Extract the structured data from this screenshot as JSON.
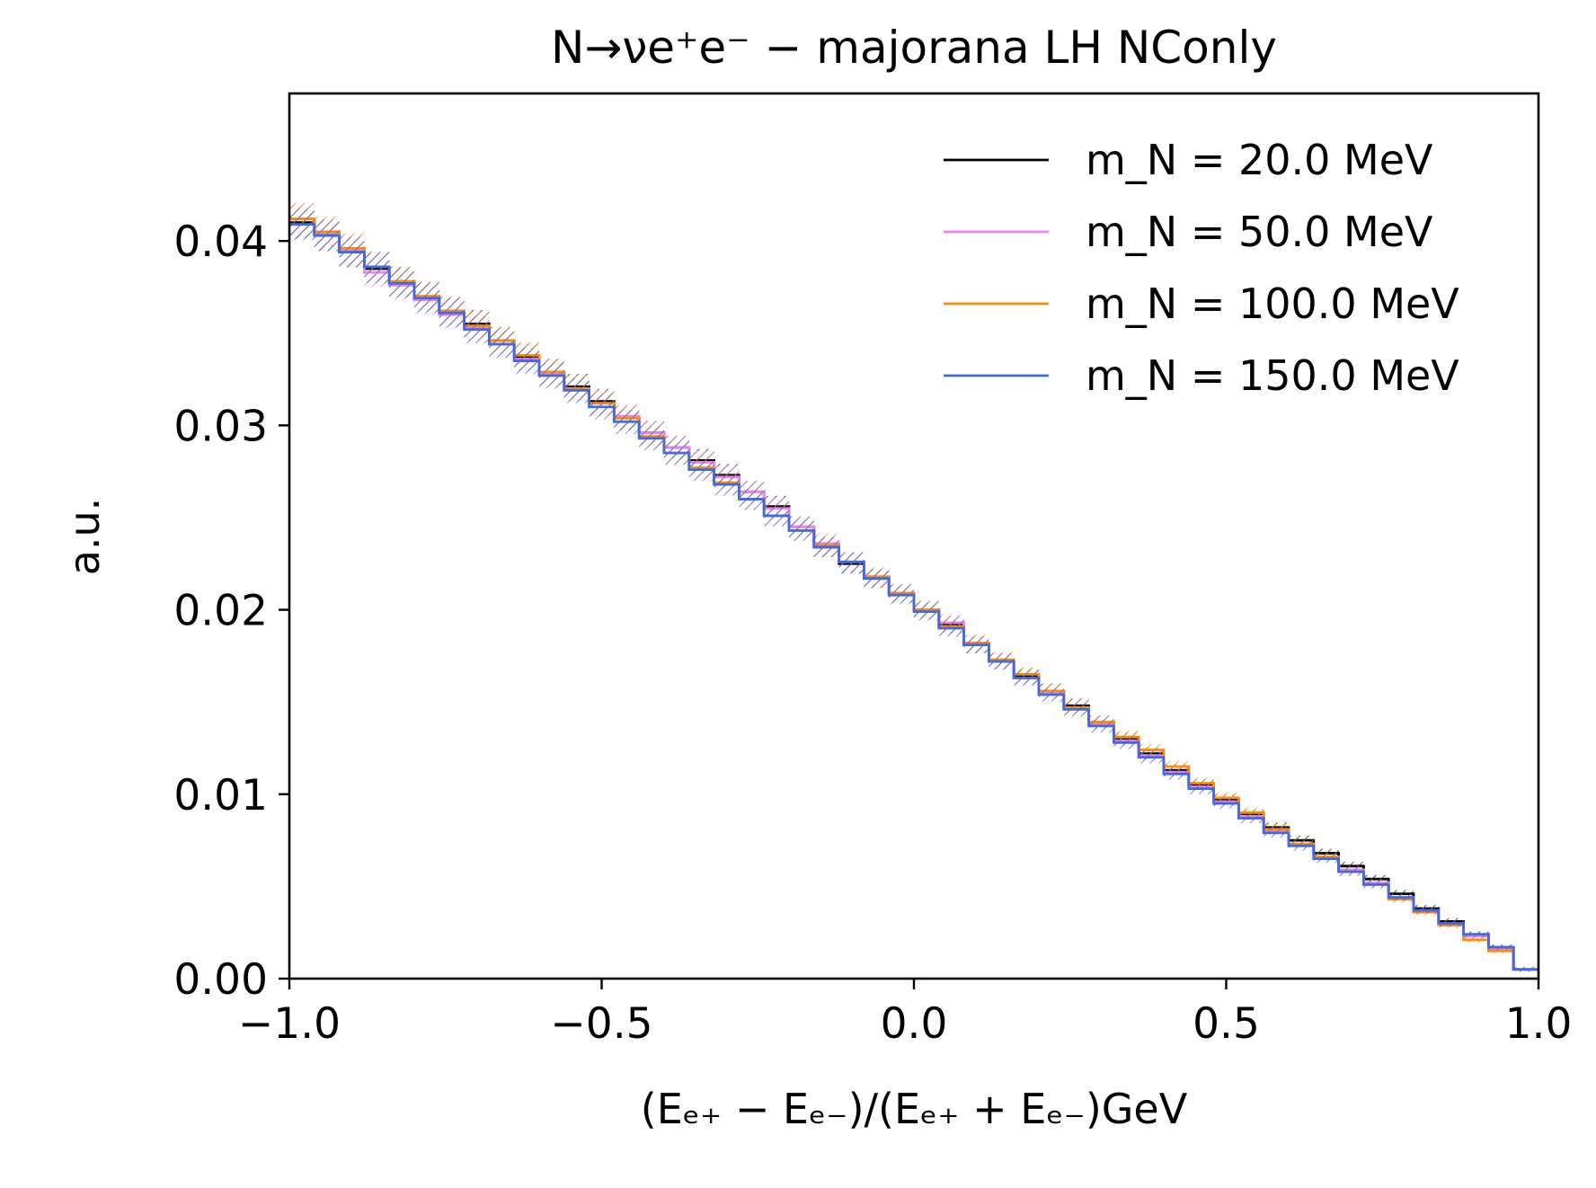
{
  "chart_data": {
    "type": "line",
    "style": "step",
    "title": "N→νe⁺e⁻ − majorana LH NConly",
    "xlabel": "(Eₑ₊ − Eₑ₋)/(Eₑ₊ + Eₑ₋)GeV",
    "ylabel": "a.u.",
    "xlim": [
      -1.0,
      1.0
    ],
    "ylim": [
      0.0,
      0.048
    ],
    "xticks": [
      -1.0,
      -0.5,
      0.0,
      0.5,
      1.0
    ],
    "xtick_labels": [
      "−1.0",
      "−0.5",
      "0.0",
      "0.5",
      "1.0"
    ],
    "yticks": [
      0.0,
      0.01,
      0.02,
      0.03,
      0.04
    ],
    "ytick_labels": [
      "0.00",
      "0.01",
      "0.02",
      "0.03",
      "0.04"
    ],
    "grid": false,
    "legend_position": "top-right",
    "bin_edges": [
      -1.0,
      -0.96,
      -0.92,
      -0.88,
      -0.84,
      -0.8,
      -0.76,
      -0.72,
      -0.68,
      -0.64,
      -0.6,
      -0.56,
      -0.52,
      -0.48,
      -0.44,
      -0.4,
      -0.36,
      -0.32,
      -0.28,
      -0.24,
      -0.2,
      -0.16,
      -0.12,
      -0.08,
      -0.04,
      0.0,
      0.04,
      0.08,
      0.12,
      0.16,
      0.2,
      0.24,
      0.28,
      0.32,
      0.36,
      0.4,
      0.44,
      0.48,
      0.52,
      0.56,
      0.6,
      0.64,
      0.68,
      0.72,
      0.76,
      0.8,
      0.84,
      0.88,
      0.92,
      0.96,
      1.0
    ],
    "series": [
      {
        "name": "m_N = 20.0 MeV",
        "color": "#000000",
        "values": [
          0.041,
          0.0403,
          0.0394,
          0.0385,
          0.0378,
          0.037,
          0.0362,
          0.0355,
          0.0346,
          0.0337,
          0.0329,
          0.0321,
          0.0313,
          0.0304,
          0.0296,
          0.0288,
          0.0281,
          0.0273,
          0.0264,
          0.0256,
          0.0245,
          0.0234,
          0.0225,
          0.0217,
          0.0209,
          0.02,
          0.0192,
          0.0181,
          0.0172,
          0.0164,
          0.0156,
          0.0148,
          0.0139,
          0.013,
          0.0122,
          0.0113,
          0.0105,
          0.0097,
          0.0089,
          0.0082,
          0.0075,
          0.0068,
          0.0061,
          0.0054,
          0.0046,
          0.0038,
          0.0031,
          0.0024,
          0.0017,
          0.0005
        ]
      },
      {
        "name": "m_N = 50.0 MeV",
        "color": "#ee82ee",
        "values": [
          0.0412,
          0.0404,
          0.0395,
          0.0383,
          0.0376,
          0.0368,
          0.036,
          0.0353,
          0.0344,
          0.0336,
          0.0328,
          0.032,
          0.0312,
          0.0305,
          0.0296,
          0.0288,
          0.028,
          0.0272,
          0.0264,
          0.0255,
          0.0245,
          0.0236,
          0.0226,
          0.0217,
          0.0209,
          0.02,
          0.0193,
          0.0182,
          0.0172,
          0.0163,
          0.0155,
          0.0147,
          0.0138,
          0.0129,
          0.0121,
          0.0112,
          0.0104,
          0.0096,
          0.0088,
          0.008,
          0.0072,
          0.0066,
          0.0059,
          0.0052,
          0.0044,
          0.0037,
          0.003,
          0.0023,
          0.0016,
          0.0005
        ]
      },
      {
        "name": "m_N = 100.0 MeV",
        "color": "#ff8c00",
        "values": [
          0.0412,
          0.0405,
          0.0396,
          0.0386,
          0.0378,
          0.037,
          0.0362,
          0.0354,
          0.0346,
          0.0338,
          0.0329,
          0.032,
          0.0312,
          0.0304,
          0.0294,
          0.0285,
          0.0277,
          0.0269,
          0.026,
          0.0251,
          0.0243,
          0.0235,
          0.0226,
          0.0218,
          0.0209,
          0.02,
          0.0191,
          0.0182,
          0.0173,
          0.0165,
          0.0156,
          0.0147,
          0.0139,
          0.0131,
          0.0124,
          0.0115,
          0.0106,
          0.0098,
          0.009,
          0.0081,
          0.0073,
          0.0066,
          0.0058,
          0.0051,
          0.0043,
          0.0036,
          0.0029,
          0.0021,
          0.0015,
          0.0005
        ]
      },
      {
        "name": "m_N = 150.0 MeV",
        "color": "#4169e1",
        "values": [
          0.0409,
          0.0403,
          0.0394,
          0.0386,
          0.0377,
          0.0369,
          0.0361,
          0.0352,
          0.0344,
          0.0335,
          0.0327,
          0.0319,
          0.031,
          0.0302,
          0.0293,
          0.0285,
          0.0276,
          0.0268,
          0.026,
          0.0251,
          0.0243,
          0.0234,
          0.0226,
          0.0217,
          0.0208,
          0.0199,
          0.019,
          0.0181,
          0.0172,
          0.0163,
          0.0154,
          0.0146,
          0.0137,
          0.0128,
          0.012,
          0.0111,
          0.0103,
          0.0095,
          0.0087,
          0.0079,
          0.0072,
          0.0065,
          0.0058,
          0.0051,
          0.0044,
          0.0037,
          0.003,
          0.0024,
          0.0017,
          0.0005
        ]
      }
    ]
  }
}
